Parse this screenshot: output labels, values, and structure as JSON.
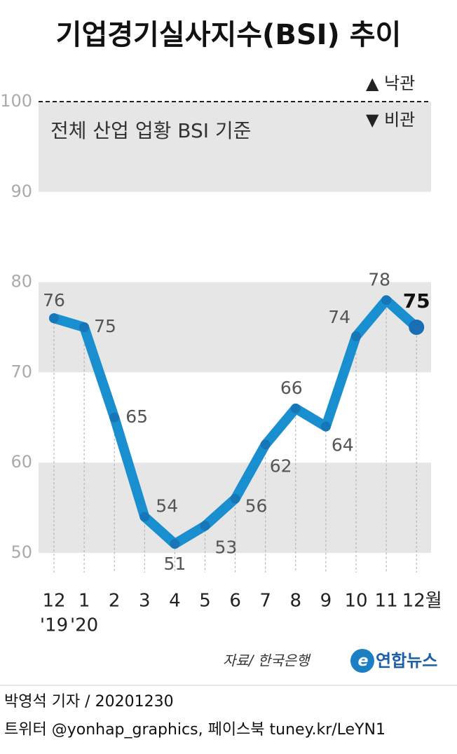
{
  "chart_data": {
    "type": "line",
    "title": "기업경기실사지수(BSI) 추이",
    "subtitle": "전체 산업 업황 BSI 기준",
    "legend": [
      "▲ 낙관",
      "▼ 비관"
    ],
    "categories": [
      "12",
      "1",
      "2",
      "3",
      "4",
      "5",
      "6",
      "7",
      "8",
      "9",
      "10",
      "11",
      "12월"
    ],
    "sublabels": [
      "'19",
      "'20",
      null,
      null,
      null,
      null,
      null,
      null,
      null,
      null,
      null,
      null,
      null
    ],
    "values": [
      76,
      75,
      65,
      54,
      51,
      53,
      56,
      62,
      66,
      64,
      74,
      78,
      75
    ],
    "color": "#1a8fd0",
    "ylim": [
      50,
      100
    ],
    "yticks": [
      50,
      60,
      70,
      80,
      90,
      100
    ],
    "source": "자료/ 한국은행",
    "logo": "연합뉴스"
  },
  "footer": {
    "byline": "박영석 기자 /  20201230",
    "social": "트위터 @yonhap_graphics, 페이스북 tuney.kr/LeYN1"
  }
}
